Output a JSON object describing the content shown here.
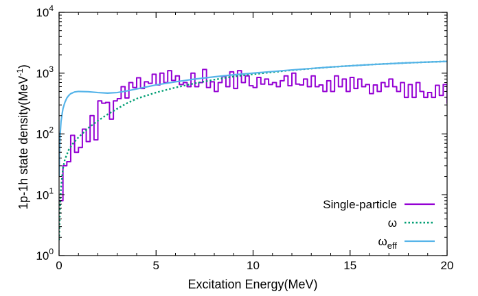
{
  "chart_data": {
    "type": "line",
    "xlabel": "Excitation Energy(MeV)",
    "ylabel": {
      "base": "1p-1h state density(MeV",
      "sup": "-1",
      "tail": ")"
    },
    "xlim": [
      0,
      20
    ],
    "ylim": [
      1,
      10000
    ],
    "yscale": "log",
    "grid": false,
    "legend_position": "bottom-right",
    "x_ticks": [
      0,
      5,
      10,
      15,
      20
    ],
    "x_tick_labels": [
      "0",
      "5",
      "10",
      "15",
      "20"
    ],
    "y_ticks": [
      1,
      10,
      100,
      1000,
      10000
    ],
    "y_tick_labels": [
      {
        "base": "10",
        "exp": "0"
      },
      {
        "base": "10",
        "exp": "1"
      },
      {
        "base": "10",
        "exp": "2"
      },
      {
        "base": "10",
        "exp": "3"
      },
      {
        "base": "10",
        "exp": "4"
      }
    ],
    "series": [
      {
        "name": "Single-particle",
        "style": "step",
        "color": "#9400d3",
        "bin_width": 0.2,
        "x_start": 0,
        "values": [
          8,
          30,
          35,
          95,
          50,
          60,
          120,
          75,
          200,
          80,
          350,
          320,
          330,
          175,
          350,
          380,
          600,
          390,
          700,
          580,
          840,
          560,
          720,
          680,
          960,
          640,
          1000,
          700,
          1100,
          760,
          900,
          650,
          700,
          600,
          1000,
          600,
          700,
          1150,
          580,
          720,
          500,
          700,
          880,
          600,
          1050,
          560,
          1100,
          700,
          900,
          620,
          580,
          850,
          660,
          800,
          650,
          700,
          600,
          750,
          900,
          620,
          1000,
          660,
          640,
          800,
          600,
          900,
          600,
          640,
          500,
          750,
          500,
          900,
          600,
          800,
          500,
          850,
          560,
          800,
          600,
          650,
          460,
          640,
          500,
          700,
          600,
          800,
          600,
          500,
          700,
          400,
          650,
          400,
          700,
          500,
          400,
          480,
          400,
          630,
          430,
          650,
          320
        ]
      },
      {
        "name": "ω",
        "style": "dotted",
        "color": "#009e73",
        "x": [
          0,
          0.05,
          0.1,
          0.2,
          0.3,
          0.5,
          0.75,
          1,
          1.5,
          2,
          2.5,
          3,
          3.5,
          4,
          5,
          6,
          7,
          8,
          9,
          10,
          12,
          14,
          16,
          18,
          20
        ],
        "y": [
          1.8,
          6,
          13,
          27,
          38,
          55,
          72,
          88,
          125,
          165,
          210,
          260,
          320,
          380,
          480,
          580,
          680,
          780,
          880,
          960,
          1120,
          1260,
          1380,
          1480,
          1560
        ]
      },
      {
        "name": "ω",
        "name_sub": "eff",
        "style": "solid",
        "color": "#56b4e9",
        "x": [
          0,
          0.02,
          0.05,
          0.1,
          0.2,
          0.3,
          0.4,
          0.5,
          0.6,
          0.8,
          1,
          1.5,
          2,
          2.5,
          3,
          3.5,
          4,
          5,
          6,
          7,
          8,
          9,
          10,
          12,
          14,
          16,
          18,
          20
        ],
        "y": [
          20,
          48,
          90,
          160,
          260,
          330,
          390,
          430,
          460,
          490,
          500,
          495,
          480,
          470,
          480,
          510,
          550,
          640,
          720,
          800,
          870,
          940,
          1000,
          1130,
          1260,
          1380,
          1480,
          1560
        ]
      }
    ]
  }
}
